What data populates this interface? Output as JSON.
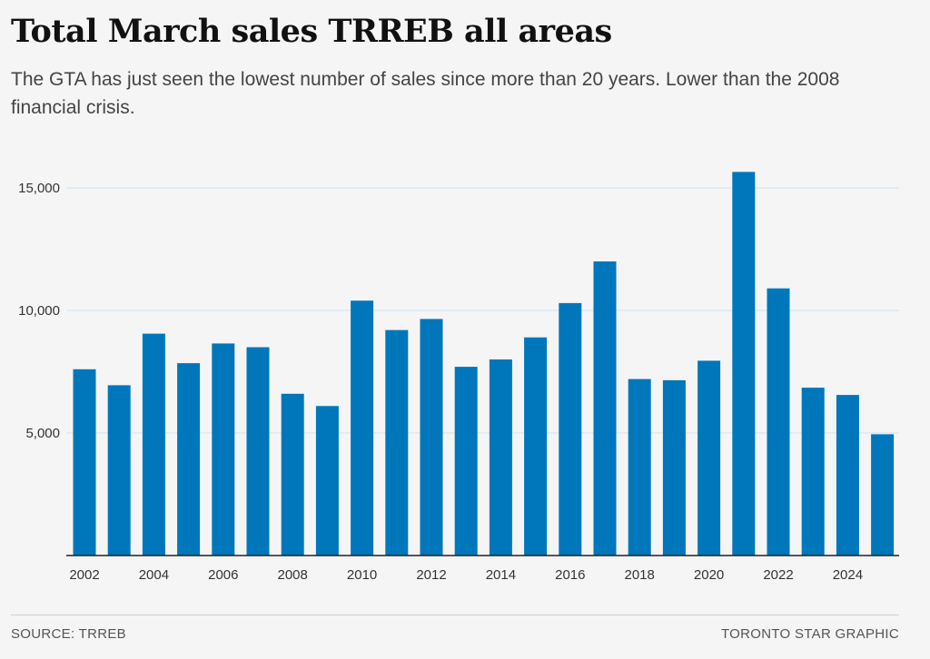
{
  "header": {
    "title": "Total March sales TRREB all areas",
    "subtitle": "The GTA has just seen the lowest number of sales since more than 20 years. Lower than the 2008 financial crisis."
  },
  "footer": {
    "source": "SOURCE: TRREB",
    "credit": "TORONTO STAR GRAPHIC"
  },
  "colors": {
    "bar": "#0077bb",
    "gridline": "#cde3ee",
    "axis": "#222222",
    "background": "#f5f5f5"
  },
  "chart_data": {
    "type": "bar",
    "title": "Total March sales TRREB all areas",
    "xlabel": "",
    "ylabel": "",
    "categories": [
      "2002",
      "2003",
      "2004",
      "2005",
      "2006",
      "2007",
      "2008",
      "2009",
      "2010",
      "2011",
      "2012",
      "2013",
      "2014",
      "2015",
      "2016",
      "2017",
      "2018",
      "2019",
      "2020",
      "2021",
      "2022",
      "2023",
      "2024",
      "2025"
    ],
    "values": [
      7600,
      6950,
      9050,
      7850,
      8650,
      8500,
      6600,
      6100,
      10400,
      9200,
      9650,
      7700,
      8000,
      8900,
      10300,
      12000,
      7200,
      7150,
      7950,
      15650,
      10900,
      6850,
      6550,
      4950
    ],
    "x_tick_labels": [
      "2002",
      "2004",
      "2006",
      "2008",
      "2010",
      "2012",
      "2014",
      "2016",
      "2018",
      "2020",
      "2022",
      "2024"
    ],
    "y_ticks": [
      5000,
      10000,
      15000
    ],
    "y_tick_labels": [
      "5,000",
      "10,000",
      "15,000"
    ],
    "ylim": [
      0,
      15650
    ],
    "grid": "horizontal",
    "legend": "none"
  }
}
